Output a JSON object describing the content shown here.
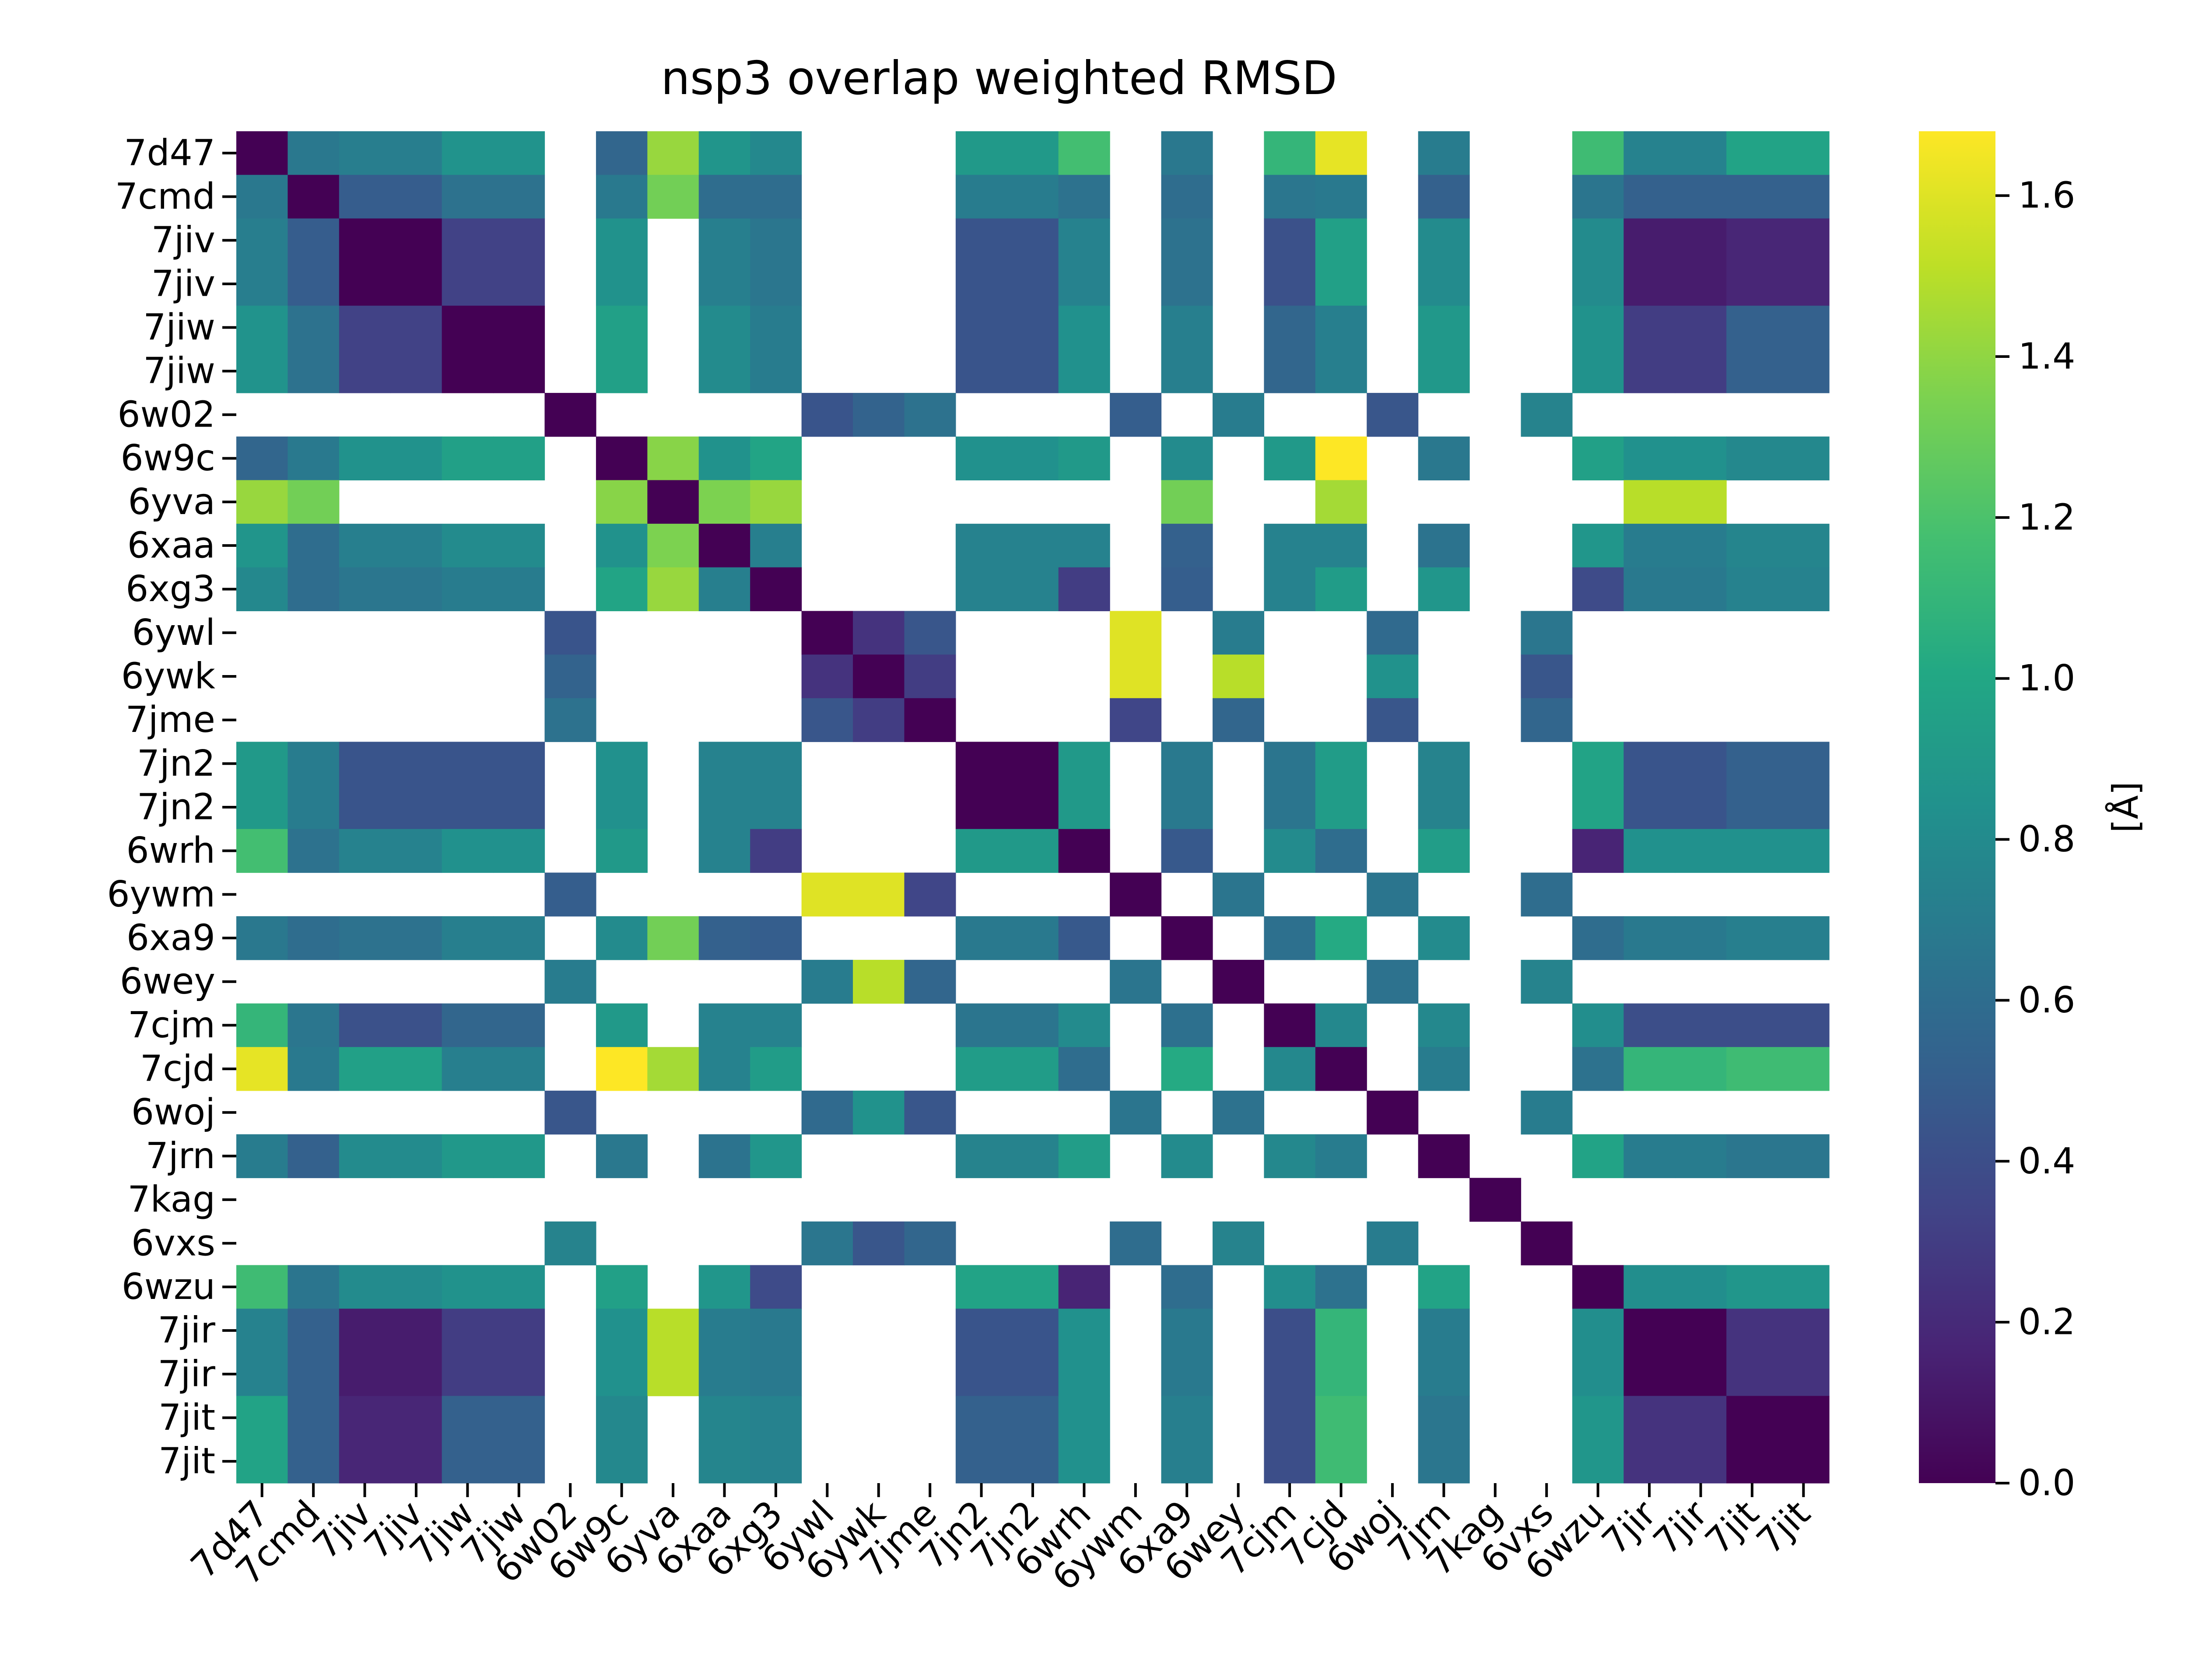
{
  "chart_data": {
    "type": "heatmap",
    "title": "nsp3 overlap weighted RMSD",
    "xlabel": "",
    "ylabel": "",
    "colorbar_label": "[Å]",
    "colormap": "viridis",
    "vmin": 0.0,
    "vmax": 1.68,
    "colorbar_ticks": [
      0.0,
      0.2,
      0.4,
      0.6,
      0.8,
      1.0,
      1.2,
      1.4,
      1.6
    ],
    "colorbar_tick_labels": [
      "0.0",
      "0.2",
      "0.4",
      "0.6",
      "0.8",
      "1.0",
      "1.2",
      "1.4",
      "1.6"
    ],
    "labels": [
      "7d47",
      "7cmd",
      "7jiv",
      "7jiv",
      "7jiw",
      "7jiw",
      "6w02",
      "6w9c",
      "6yva",
      "6xaa",
      "6xg3",
      "6ywl",
      "6ywk",
      "7jme",
      "7jn2",
      "7jn2",
      "6wrh",
      "6ywm",
      "6xa9",
      "6wey",
      "7cjm",
      "7cjd",
      "6woj",
      "7jrn",
      "7kag",
      "6vxs",
      "6wzu",
      "7jir",
      "7jir",
      "7jit",
      "7jit"
    ],
    "groups": {
      "A": [
        0,
        1,
        2,
        3,
        4,
        5,
        7,
        9,
        10,
        14,
        15,
        16,
        18,
        20,
        21,
        23,
        26,
        27,
        28,
        29,
        30
      ],
      "B": [
        6,
        11,
        12,
        13,
        17,
        19,
        22,
        25
      ]
    },
    "values": [
      [
        0.0,
        0.67,
        0.71,
        0.71,
        0.86,
        0.86,
        null,
        0.55,
        1.42,
        0.87,
        0.78,
        null,
        null,
        null,
        0.9,
        0.9,
        1.17,
        null,
        0.67,
        null,
        1.1,
        1.62,
        null,
        0.7,
        null,
        null,
        1.15,
        0.74,
        0.74,
        0.97,
        0.97
      ],
      [
        0.67,
        0.0,
        0.49,
        0.49,
        0.63,
        0.63,
        null,
        0.68,
        1.32,
        0.6,
        0.6,
        null,
        null,
        null,
        0.7,
        0.7,
        0.63,
        null,
        0.6,
        null,
        0.66,
        0.68,
        null,
        0.52,
        null,
        null,
        0.65,
        0.52,
        0.52,
        0.52,
        0.52
      ],
      [
        0.71,
        0.49,
        0.0,
        0.0,
        0.33,
        0.33,
        null,
        0.85,
        null,
        0.72,
        0.66,
        null,
        null,
        null,
        0.44,
        0.44,
        0.74,
        null,
        0.63,
        null,
        0.42,
        0.95,
        null,
        0.8,
        null,
        null,
        0.8,
        0.13,
        0.13,
        0.18,
        0.18
      ],
      [
        0.71,
        0.49,
        0.0,
        0.0,
        0.33,
        0.33,
        null,
        0.85,
        null,
        0.72,
        0.66,
        null,
        null,
        null,
        0.44,
        0.44,
        0.74,
        null,
        0.63,
        null,
        0.42,
        0.95,
        null,
        0.8,
        null,
        null,
        0.8,
        0.13,
        0.13,
        0.18,
        0.18
      ],
      [
        0.86,
        0.63,
        0.33,
        0.33,
        0.0,
        0.0,
        null,
        0.95,
        null,
        0.8,
        0.7,
        null,
        null,
        null,
        0.44,
        0.44,
        0.84,
        null,
        0.72,
        null,
        0.55,
        0.72,
        null,
        0.89,
        null,
        null,
        0.85,
        0.3,
        0.3,
        0.52,
        0.52
      ],
      [
        0.86,
        0.63,
        0.33,
        0.33,
        0.0,
        0.0,
        null,
        0.95,
        null,
        0.8,
        0.7,
        null,
        null,
        null,
        0.44,
        0.44,
        0.84,
        null,
        0.72,
        null,
        0.55,
        0.72,
        null,
        0.89,
        null,
        null,
        0.85,
        0.3,
        0.3,
        0.52,
        0.52
      ],
      [
        null,
        null,
        null,
        null,
        null,
        null,
        0.0,
        null,
        null,
        null,
        null,
        0.44,
        0.53,
        0.63,
        null,
        null,
        null,
        0.5,
        null,
        0.7,
        null,
        null,
        0.45,
        null,
        null,
        0.75,
        null,
        null,
        null,
        null,
        null
      ],
      [
        0.55,
        0.68,
        0.85,
        0.85,
        0.95,
        0.95,
        null,
        0.0,
        1.38,
        0.85,
        0.98,
        null,
        null,
        null,
        0.84,
        0.84,
        0.9,
        null,
        0.8,
        null,
        0.9,
        1.68,
        null,
        0.67,
        null,
        null,
        0.95,
        0.84,
        0.84,
        0.78,
        0.78
      ],
      [
        1.42,
        1.32,
        null,
        null,
        null,
        null,
        null,
        1.38,
        0.0,
        1.35,
        1.42,
        null,
        null,
        null,
        null,
        null,
        null,
        null,
        1.32,
        null,
        null,
        1.45,
        null,
        null,
        null,
        null,
        null,
        1.5,
        1.5,
        null,
        null
      ],
      [
        0.87,
        0.6,
        0.72,
        0.72,
        0.8,
        0.8,
        null,
        0.85,
        1.35,
        0.0,
        0.72,
        null,
        null,
        null,
        0.74,
        0.74,
        0.74,
        null,
        0.52,
        null,
        0.74,
        0.74,
        null,
        0.64,
        null,
        null,
        0.88,
        0.7,
        0.7,
        0.76,
        0.76
      ],
      [
        0.78,
        0.6,
        0.66,
        0.66,
        0.7,
        0.7,
        null,
        0.98,
        1.42,
        0.72,
        0.0,
        null,
        null,
        null,
        0.74,
        0.74,
        0.3,
        null,
        0.5,
        null,
        0.74,
        0.92,
        null,
        0.88,
        null,
        null,
        0.38,
        0.68,
        0.68,
        0.74,
        0.74
      ],
      [
        null,
        null,
        null,
        null,
        null,
        null,
        0.44,
        null,
        null,
        null,
        null,
        0.0,
        0.25,
        0.45,
        null,
        null,
        null,
        1.6,
        null,
        0.7,
        null,
        null,
        0.58,
        null,
        null,
        0.66,
        null,
        null,
        null,
        null,
        null
      ],
      [
        null,
        null,
        null,
        null,
        null,
        null,
        0.53,
        null,
        null,
        null,
        null,
        0.25,
        0.0,
        0.3,
        null,
        null,
        null,
        1.6,
        null,
        1.5,
        null,
        null,
        0.85,
        null,
        null,
        0.45,
        null,
        null,
        null,
        null,
        null
      ],
      [
        null,
        null,
        null,
        null,
        null,
        null,
        0.63,
        null,
        null,
        null,
        null,
        0.45,
        0.3,
        0.0,
        null,
        null,
        null,
        0.35,
        null,
        0.55,
        null,
        null,
        0.45,
        null,
        null,
        0.55,
        null,
        null,
        null,
        null,
        null
      ],
      [
        0.9,
        0.7,
        0.44,
        0.44,
        0.44,
        0.44,
        null,
        0.84,
        null,
        0.74,
        0.74,
        null,
        null,
        null,
        0.0,
        0.0,
        0.9,
        null,
        0.68,
        null,
        0.65,
        0.92,
        null,
        0.75,
        null,
        null,
        0.97,
        0.44,
        0.44,
        0.52,
        0.52
      ],
      [
        0.9,
        0.7,
        0.44,
        0.44,
        0.44,
        0.44,
        null,
        0.84,
        null,
        0.74,
        0.74,
        null,
        null,
        null,
        0.0,
        0.0,
        0.9,
        null,
        0.68,
        null,
        0.65,
        0.92,
        null,
        0.75,
        null,
        null,
        0.97,
        0.44,
        0.44,
        0.52,
        0.52
      ],
      [
        1.17,
        0.63,
        0.74,
        0.74,
        0.84,
        0.84,
        null,
        0.9,
        null,
        0.74,
        0.3,
        null,
        null,
        null,
        0.9,
        0.9,
        0.0,
        null,
        0.47,
        null,
        0.8,
        0.6,
        null,
        0.93,
        null,
        null,
        0.17,
        0.84,
        0.84,
        0.84,
        0.84
      ],
      [
        null,
        null,
        null,
        null,
        null,
        null,
        0.5,
        null,
        null,
        null,
        null,
        1.6,
        1.6,
        0.35,
        null,
        null,
        null,
        0.0,
        null,
        0.65,
        null,
        null,
        0.65,
        null,
        null,
        0.6,
        null,
        null,
        null,
        null,
        null
      ],
      [
        0.67,
        0.6,
        0.63,
        0.63,
        0.72,
        0.72,
        null,
        0.8,
        1.32,
        0.52,
        0.5,
        null,
        null,
        null,
        0.68,
        0.68,
        0.47,
        null,
        0.0,
        null,
        0.62,
        1.02,
        null,
        0.8,
        null,
        null,
        0.6,
        0.68,
        0.68,
        0.72,
        0.72
      ],
      [
        null,
        null,
        null,
        null,
        null,
        null,
        0.7,
        null,
        null,
        null,
        null,
        0.7,
        1.5,
        0.55,
        null,
        null,
        null,
        0.65,
        null,
        0.0,
        null,
        null,
        0.63,
        null,
        null,
        0.75,
        null,
        null,
        null,
        null,
        null
      ],
      [
        1.1,
        0.66,
        0.42,
        0.42,
        0.55,
        0.55,
        null,
        0.9,
        null,
        0.74,
        0.74,
        null,
        null,
        null,
        0.65,
        0.65,
        0.8,
        null,
        0.62,
        null,
        0.0,
        0.78,
        null,
        0.78,
        null,
        null,
        0.82,
        0.4,
        0.4,
        0.4,
        0.4
      ],
      [
        1.62,
        0.68,
        0.95,
        0.95,
        0.72,
        0.72,
        null,
        1.68,
        1.45,
        0.74,
        0.92,
        null,
        null,
        null,
        0.92,
        0.92,
        0.6,
        null,
        1.02,
        null,
        0.78,
        0.0,
        null,
        0.7,
        null,
        null,
        0.63,
        1.1,
        1.1,
        1.15,
        1.15
      ],
      [
        null,
        null,
        null,
        null,
        null,
        null,
        0.45,
        null,
        null,
        null,
        null,
        0.58,
        0.85,
        0.45,
        null,
        null,
        null,
        0.65,
        null,
        0.63,
        null,
        null,
        0.0,
        null,
        null,
        0.7,
        null,
        null,
        null,
        null,
        null
      ],
      [
        0.7,
        0.52,
        0.8,
        0.8,
        0.89,
        0.89,
        null,
        0.67,
        null,
        0.64,
        0.88,
        null,
        null,
        null,
        0.75,
        0.75,
        0.93,
        null,
        0.8,
        null,
        0.78,
        0.7,
        null,
        0.0,
        null,
        null,
        0.97,
        0.7,
        0.7,
        0.66,
        0.66
      ],
      [
        null,
        null,
        null,
        null,
        null,
        null,
        null,
        null,
        null,
        null,
        null,
        null,
        null,
        null,
        null,
        null,
        null,
        null,
        null,
        null,
        null,
        null,
        null,
        null,
        0.0,
        null,
        null,
        null,
        null,
        null,
        null
      ],
      [
        null,
        null,
        null,
        null,
        null,
        null,
        0.75,
        null,
        null,
        null,
        null,
        0.66,
        0.45,
        0.55,
        null,
        null,
        null,
        0.6,
        null,
        0.75,
        null,
        null,
        0.7,
        null,
        null,
        0.0,
        null,
        null,
        null,
        null,
        null
      ],
      [
        1.15,
        0.65,
        0.8,
        0.8,
        0.85,
        0.85,
        null,
        0.95,
        null,
        0.88,
        0.38,
        null,
        null,
        null,
        0.97,
        0.97,
        0.17,
        null,
        0.6,
        null,
        0.82,
        0.63,
        null,
        0.97,
        null,
        null,
        0.0,
        0.82,
        0.82,
        0.88,
        0.88
      ],
      [
        0.74,
        0.52,
        0.13,
        0.13,
        0.3,
        0.3,
        null,
        0.84,
        1.5,
        0.7,
        0.68,
        null,
        null,
        null,
        0.44,
        0.44,
        0.84,
        null,
        0.68,
        null,
        0.4,
        1.1,
        null,
        0.7,
        null,
        null,
        0.82,
        0.0,
        0.0,
        0.25,
        0.25
      ],
      [
        0.74,
        0.52,
        0.13,
        0.13,
        0.3,
        0.3,
        null,
        0.84,
        1.5,
        0.7,
        0.68,
        null,
        null,
        null,
        0.44,
        0.44,
        0.84,
        null,
        0.68,
        null,
        0.4,
        1.1,
        null,
        0.7,
        null,
        null,
        0.82,
        0.0,
        0.0,
        0.25,
        0.25
      ],
      [
        0.97,
        0.52,
        0.18,
        0.18,
        0.52,
        0.52,
        null,
        0.78,
        null,
        0.76,
        0.74,
        null,
        null,
        null,
        0.52,
        0.52,
        0.84,
        null,
        0.72,
        null,
        0.4,
        1.15,
        null,
        0.66,
        null,
        null,
        0.88,
        0.25,
        0.25,
        0.0,
        0.0
      ],
      [
        0.97,
        0.52,
        0.18,
        0.18,
        0.52,
        0.52,
        null,
        0.78,
        null,
        0.76,
        0.74,
        null,
        null,
        null,
        0.52,
        0.52,
        0.84,
        null,
        0.72,
        null,
        0.4,
        1.15,
        null,
        0.66,
        null,
        null,
        0.88,
        0.25,
        0.25,
        0.0,
        0.0
      ]
    ]
  }
}
